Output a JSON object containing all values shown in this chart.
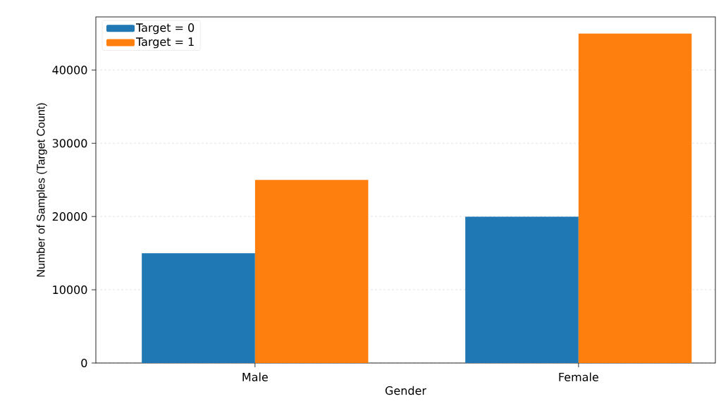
{
  "chart_data": {
    "type": "bar",
    "xlabel": "Gender",
    "ylabel": "Number of Samples (Target Count)",
    "categories": [
      "Male",
      "Female"
    ],
    "series": [
      {
        "name": "Target = 0",
        "color": "#1f77b4",
        "values": [
          15000,
          20000
        ]
      },
      {
        "name": "Target = 1",
        "color": "#ff7f0e",
        "values": [
          25000,
          45000
        ]
      }
    ],
    "ylim": [
      0,
      47250
    ],
    "yticks": [
      0,
      10000,
      20000,
      30000,
      40000
    ],
    "grid": "y",
    "legend": "top left"
  }
}
